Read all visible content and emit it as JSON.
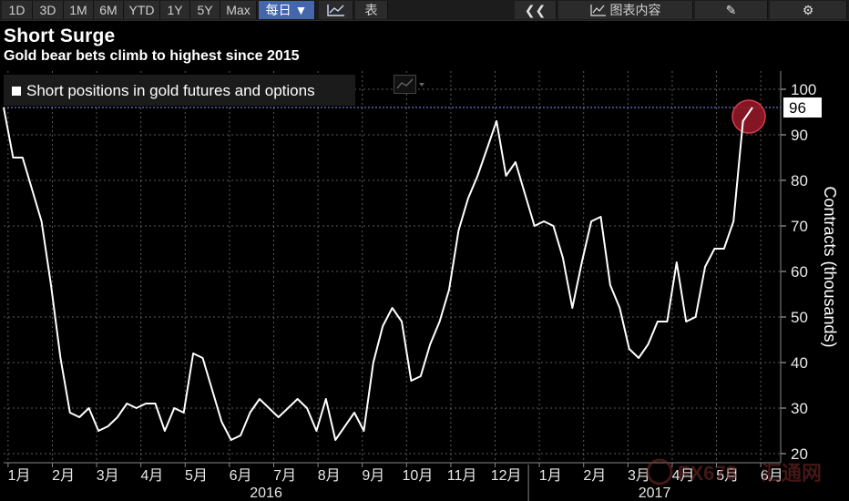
{
  "toolbar": {
    "periods": [
      "1D",
      "3D",
      "1M",
      "6M",
      "YTD",
      "1Y",
      "5Y",
      "Max"
    ],
    "frequency": "每日 ▼",
    "table_label": "表",
    "chart_content_label": "图表内容"
  },
  "chart_data": {
    "type": "line",
    "title": "Short Surge",
    "subtitle": "Gold bear bets climb to highest since 2015",
    "ylabel": "Contracts (thousands)",
    "ylim": [
      18,
      104
    ],
    "yticks": [
      20,
      30,
      40,
      50,
      60,
      70,
      80,
      90,
      100
    ],
    "grid": true,
    "legend_placement": "top-left",
    "series": [
      {
        "name": "Short positions in gold futures and options",
        "color": "#ffffff",
        "values": [
          96,
          85,
          85,
          78,
          71,
          57,
          41,
          29,
          28,
          30,
          25,
          26,
          28,
          31,
          30,
          31,
          31,
          25,
          30,
          29,
          42,
          41,
          34,
          27,
          23,
          24,
          29,
          32,
          30,
          28,
          30,
          32,
          30,
          25,
          32,
          23,
          26,
          29,
          25,
          40,
          48,
          52,
          49,
          36,
          37,
          44,
          49,
          56,
          69,
          76,
          81,
          87,
          93,
          81,
          84,
          77,
          70,
          71,
          70,
          63,
          52,
          62,
          71,
          72,
          57,
          52,
          43,
          41,
          44,
          49,
          49,
          62,
          49,
          50,
          61,
          65,
          65,
          71,
          93,
          96
        ]
      }
    ],
    "last_value_label": "96",
    "reference_line": 96,
    "x_month_labels": [
      "1月",
      "2月",
      "3月",
      "4月",
      "5月",
      "6月",
      "7月",
      "8月",
      "9月",
      "10月",
      "11月",
      "12月",
      "1月",
      "2月",
      "3月",
      "4月",
      "5月",
      "6月"
    ],
    "x_year_labels": [
      "2016",
      "2017"
    ]
  },
  "watermark": {
    "text": "FX678",
    "text_cn": "汇通网"
  }
}
